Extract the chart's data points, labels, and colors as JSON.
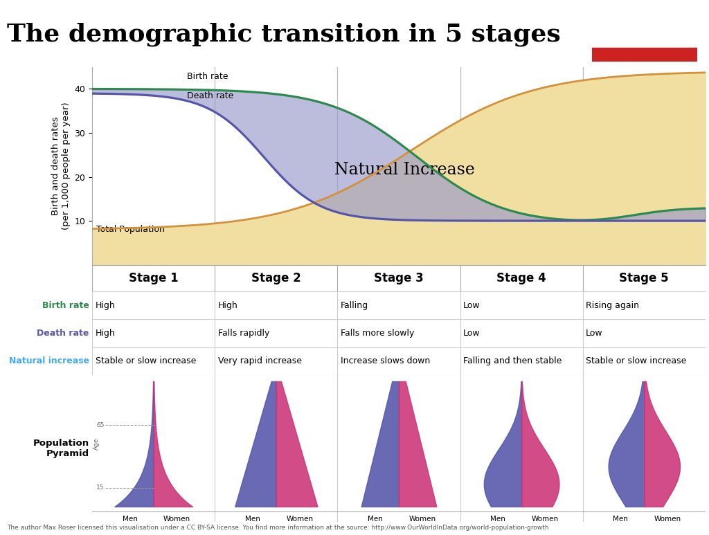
{
  "title": "The demographic transition in 5 stages",
  "title_fontsize": 26,
  "bg_color": "#ffffff",
  "chart_bg": "#ffffff",
  "birth_rate_color": "#2d8a4e",
  "death_rate_color": "#5555aa",
  "population_color": "#d4903a",
  "natural_increase_fill": "#9999cc",
  "population_fill": "#f0dfa0",
  "ylabel_line1": "Birth and death rates",
  "ylabel_line2": "(per 1,000 people per year)",
  "ylim": [
    0,
    45
  ],
  "yticks": [
    10,
    20,
    30,
    40
  ],
  "stage_labels": [
    "Stage 1",
    "Stage 2",
    "Stage 3",
    "Stage 4",
    "Stage 5"
  ],
  "birth_rate_label": "Birth rate",
  "death_rate_label": "Death rate",
  "population_label": "Total Population",
  "natural_increase_label": "Natural Increase",
  "table_row_labels": [
    "Birth rate",
    "Death rate",
    "Natural increase"
  ],
  "table_row_colors": [
    "#2d8a4e",
    "#5555aa",
    "#44aaee"
  ],
  "table_birth": [
    "High",
    "High",
    "Falling",
    "Low",
    "Rising again"
  ],
  "table_death": [
    "High",
    "Falls rapidly",
    "Falls more slowly",
    "Low",
    "Low"
  ],
  "table_natural": [
    "Stable or slow increase",
    "Very rapid increase",
    "Increase slows down",
    "Falling and then stable",
    "Stable or slow increase"
  ],
  "logo_bg": "#1a3560",
  "logo_red": "#cc2222",
  "footer": "The author Max Roser licensed this visualisation under a CC BY-SA license. You find more information at the source: http://www.OurWorldInData.org/world-population-growth",
  "men_color": "#5555aa",
  "women_color": "#cc3377",
  "stage_dividers": [
    2.0,
    4.0,
    6.0,
    8.0
  ]
}
